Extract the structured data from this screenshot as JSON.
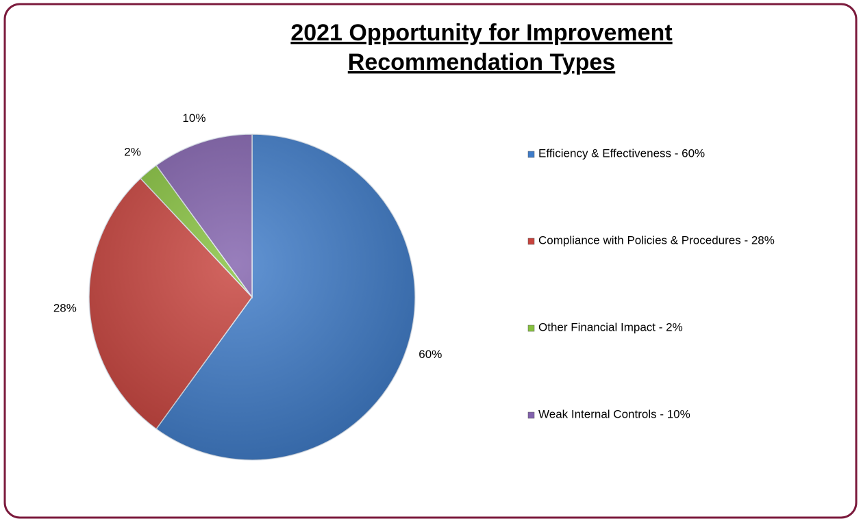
{
  "chart_data": {
    "type": "pie",
    "title": [
      "2021 Opportunity for Improvement",
      "Recommendation Types"
    ],
    "categories": [
      "Efficiency & Effectiveness - 60%",
      "Compliance with Policies & Procedures - 28%",
      "Other Financial Impact - 2%",
      "Weak Internal Controls - 10%"
    ],
    "values": [
      60,
      28,
      2,
      10
    ],
    "value_labels": [
      "60%",
      "28%",
      "2%",
      "10%"
    ],
    "colors": [
      "#3f7cc9",
      "#c8433d",
      "#86c13e",
      "#8262ad"
    ],
    "legend": "right"
  }
}
